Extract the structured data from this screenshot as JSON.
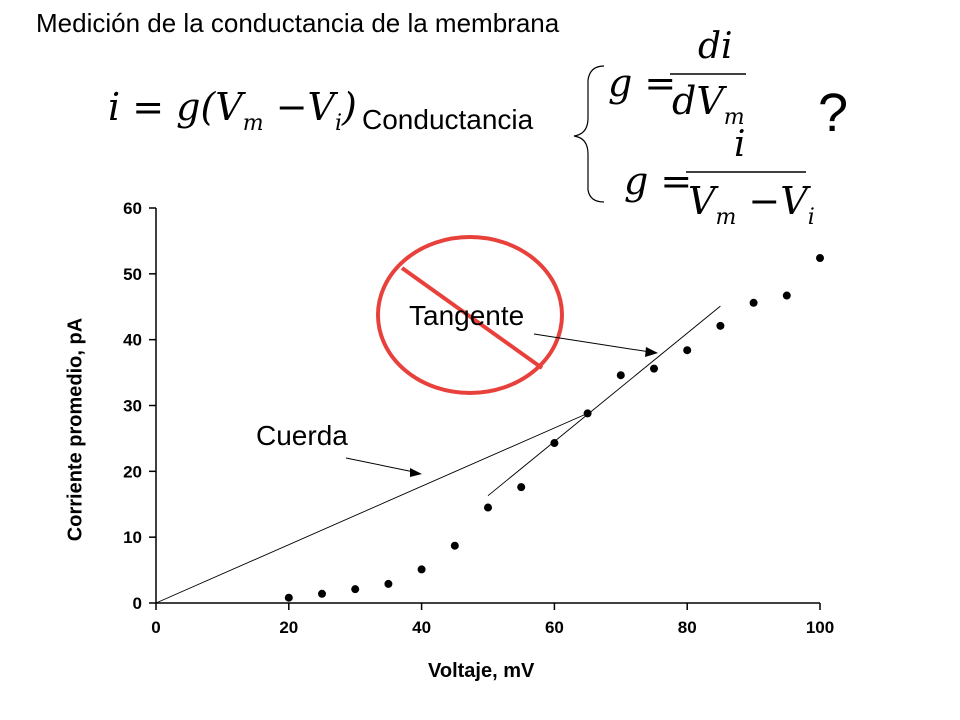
{
  "title": "Medición de la conductancia de la membrana",
  "conductance_label": "Conductancia",
  "question_mark": "?",
  "equations": {
    "ohm": "i = g(V_m − V_i)",
    "tangent": "g = di / dV_m",
    "chord": "g = i / (V_m − V_i)"
  },
  "annotations": {
    "chord_label": "Cuerda",
    "tangent_label": "Tangente"
  },
  "chart_data": {
    "type": "scatter",
    "title": "",
    "xlabel": "Voltaje, mV",
    "ylabel": "Corriente promedio, pA",
    "xlim": [
      0,
      100
    ],
    "ylim": [
      0,
      60
    ],
    "xticks": [
      0,
      20,
      40,
      60,
      80,
      100
    ],
    "yticks": [
      0,
      10,
      20,
      30,
      40,
      50,
      60
    ],
    "grid": false,
    "series": [
      {
        "x": [
          20,
          25,
          30,
          35,
          40,
          45,
          50,
          55,
          60,
          65,
          70,
          75,
          80,
          85,
          90,
          95,
          100
        ],
        "y": [
          0.8,
          1.4,
          2.1,
          2.9,
          5.1,
          8.7,
          14.5,
          17.6,
          24.3,
          28.8,
          34.6,
          35.6,
          38.4,
          42.1,
          45.6,
          46.7,
          52.4
        ]
      }
    ],
    "lines": [
      {
        "name": "Cuerda",
        "x": [
          0,
          65
        ],
        "y": [
          0,
          28.8
        ]
      },
      {
        "name": "Tangente",
        "x": [
          50,
          85
        ],
        "y": [
          16.3,
          45.1
        ]
      }
    ]
  }
}
